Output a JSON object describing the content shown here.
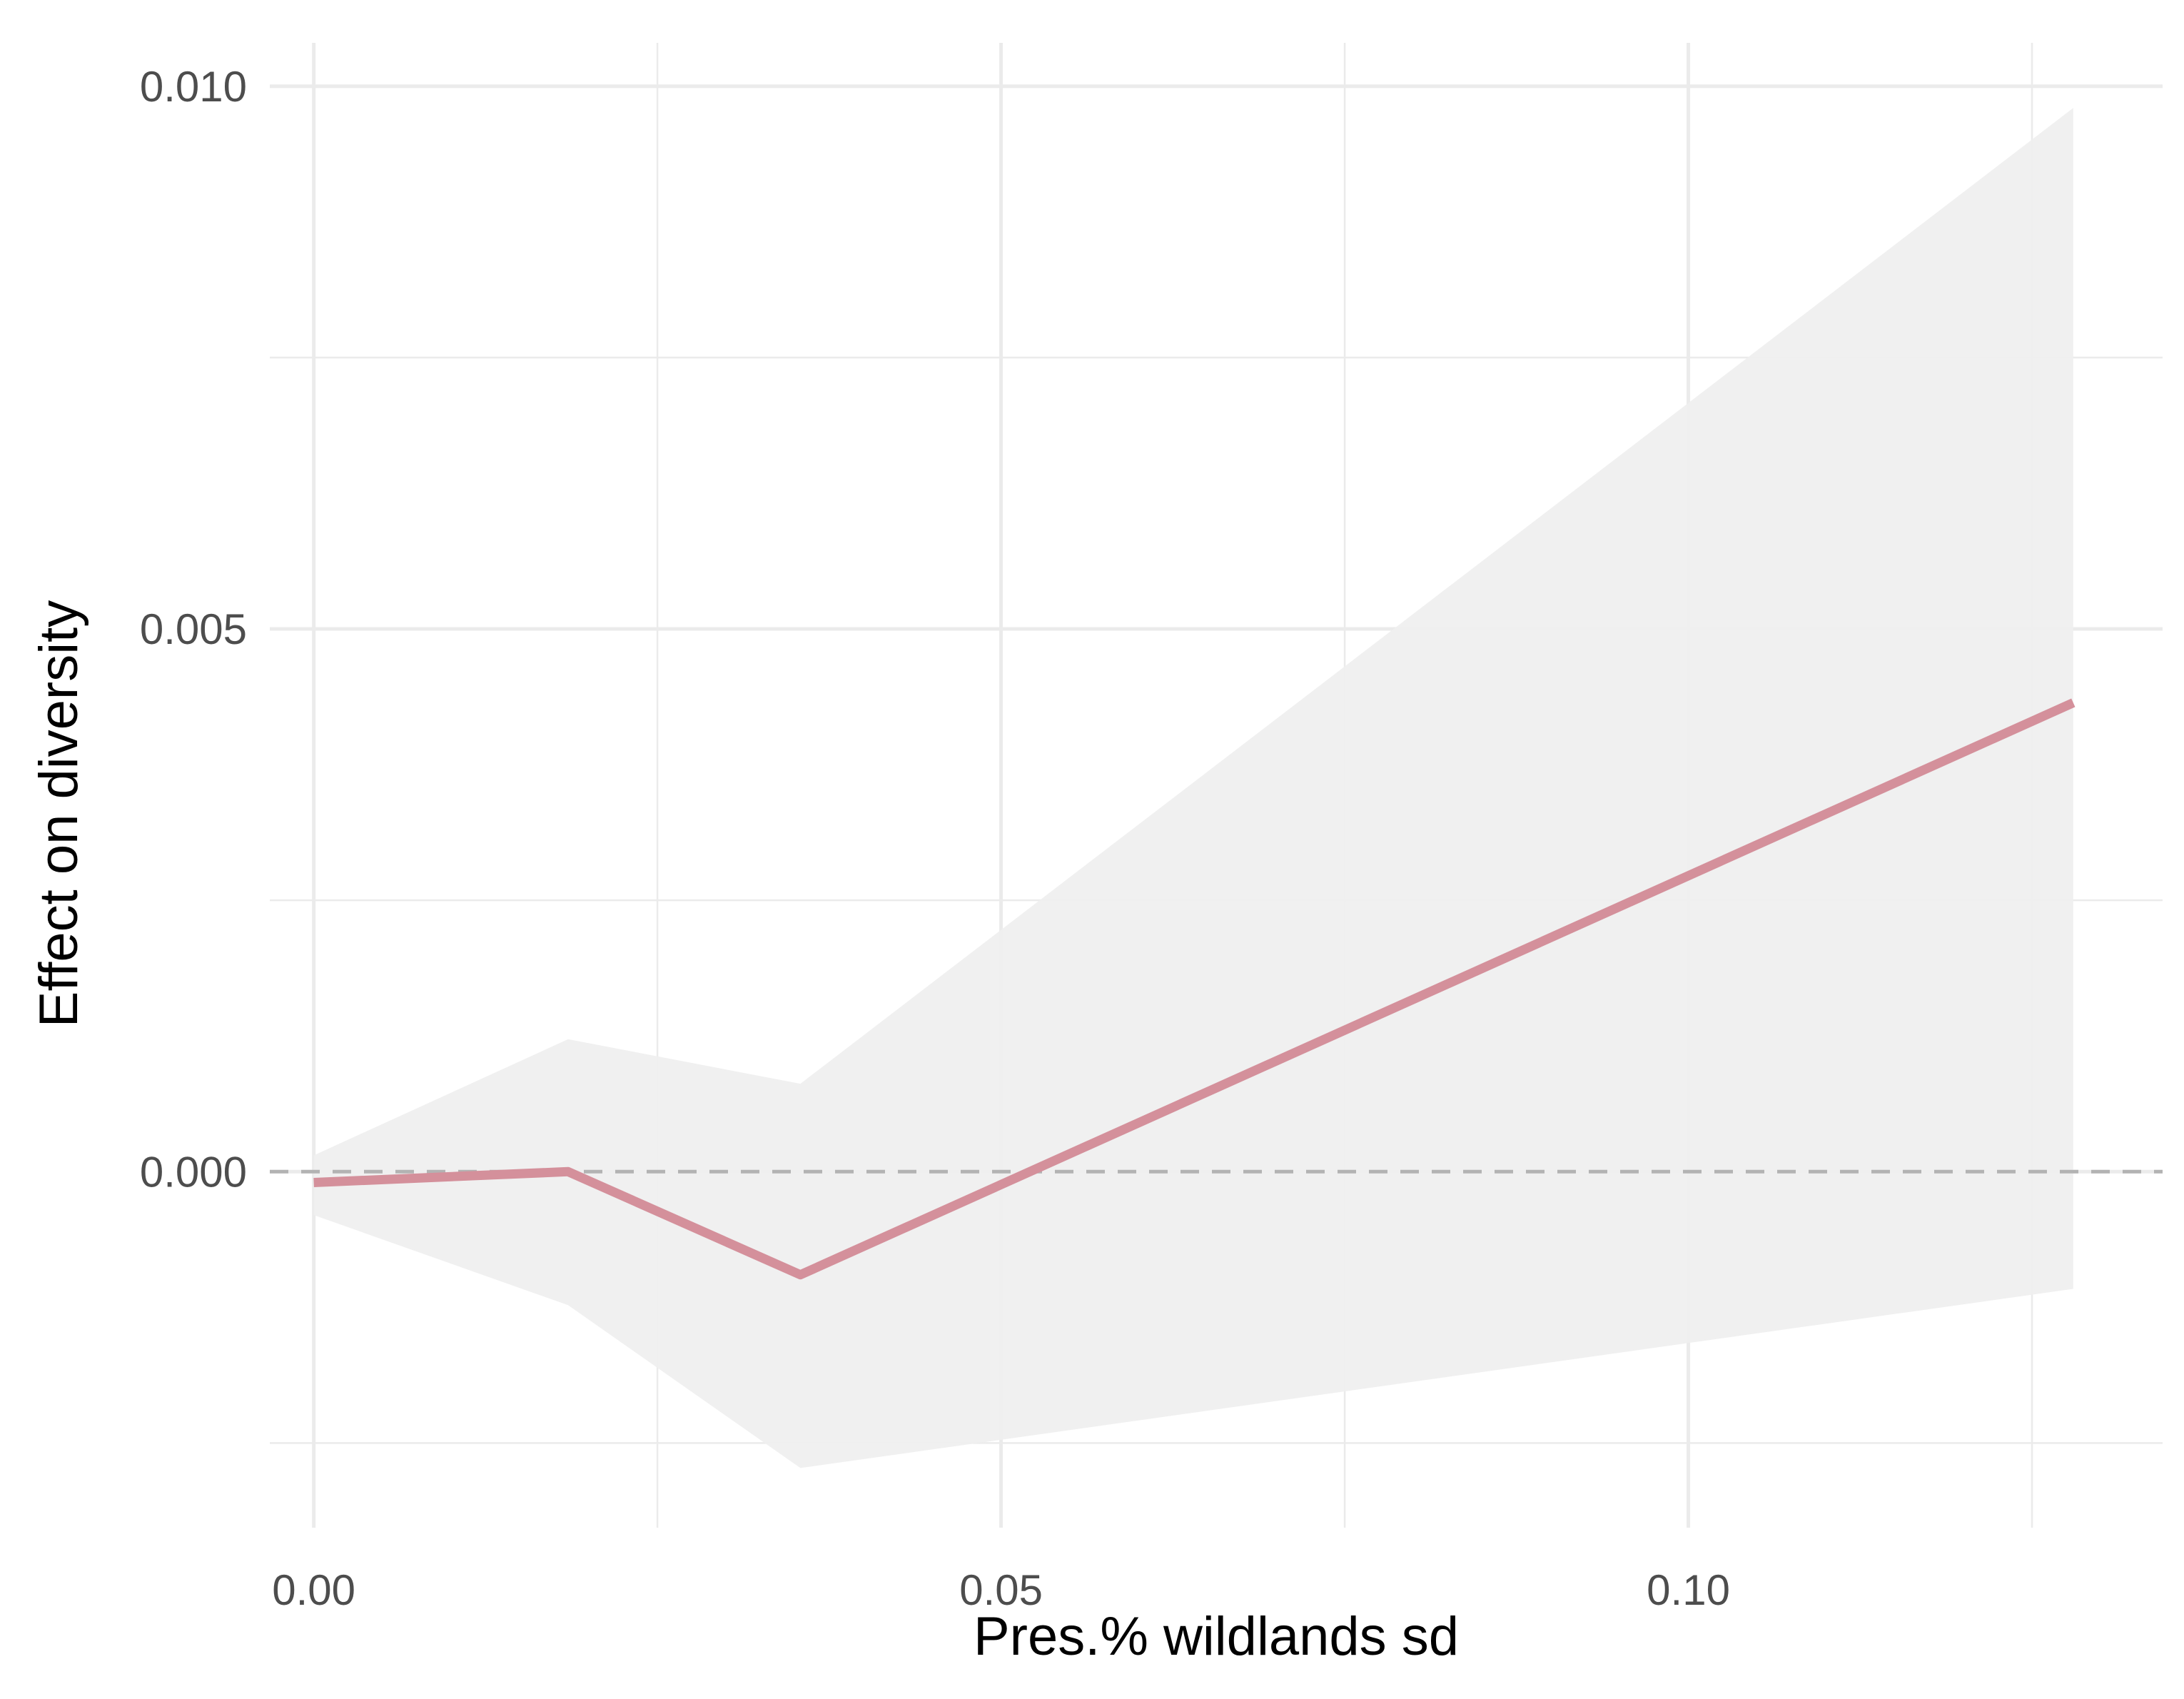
{
  "chart_data": {
    "type": "line",
    "title": "",
    "xlabel": "Pres.% wildlands sd",
    "ylabel": "Effect on diversity",
    "xlim": [
      -0.0032,
      0.1345
    ],
    "ylim": [
      -0.00328,
      0.0104
    ],
    "x_ticks": [
      {
        "value": 0.0,
        "label": "0.00"
      },
      {
        "value": 0.05,
        "label": "0.05"
      },
      {
        "value": 0.1,
        "label": "0.10"
      }
    ],
    "x_minor_ticks": [
      0.025,
      0.075,
      0.125
    ],
    "y_ticks": [
      {
        "value": 0.0,
        "label": "0.000"
      },
      {
        "value": 0.005,
        "label": "0.005"
      },
      {
        "value": 0.01,
        "label": "0.010"
      }
    ],
    "y_minor_ticks": [
      -0.0025,
      0.0025,
      0.0075
    ],
    "grid": true,
    "reference_line": {
      "y": 0.0,
      "style": "dashed",
      "color": "#b3b3b3"
    },
    "series": [
      {
        "color": "#d4909b",
        "x": [
          0.0,
          0.0185,
          0.0354,
          0.128
        ],
        "y": [
          -0.0001,
          0.0,
          -0.00095,
          0.00432
        ],
        "ribbon": {
          "color": "#efefef",
          "lower": [
            -0.0004,
            -0.00123,
            -0.00273,
            -0.00108
          ],
          "upper": [
            0.00015,
            0.00122,
            0.00081,
            0.0098
          ]
        }
      }
    ]
  }
}
